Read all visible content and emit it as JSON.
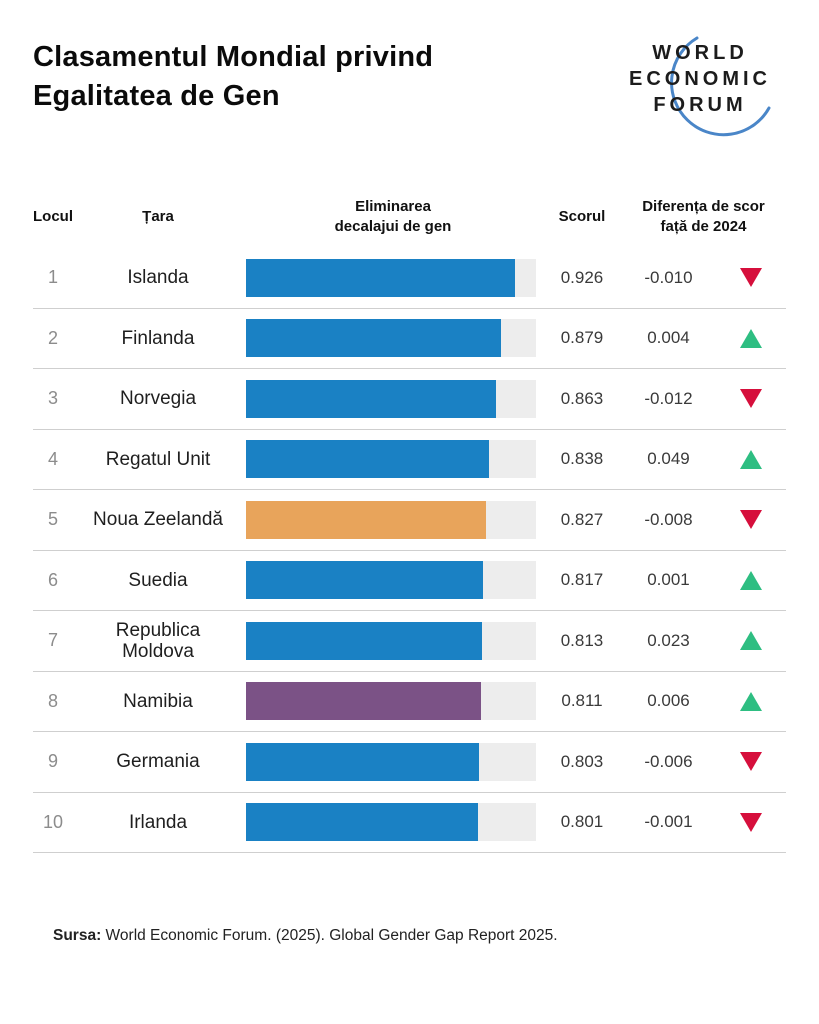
{
  "title": "Clasamentul Mondial privind\nEgalitatea de Gen",
  "logo": {
    "line1": "WORLD",
    "line2": "ECONOMIC",
    "line3": "FORUM"
  },
  "table": {
    "headers": {
      "rank": "Locul",
      "country": "Țara",
      "bar": "Eliminarea\ndecalajui de gen",
      "score": "Scorul",
      "diff": "Diferența de scor\nfață de 2024"
    },
    "rows": [
      {
        "rank": "1",
        "country": "Islanda",
        "score": "0.926",
        "diff": "-0.010",
        "direction": "down",
        "value": 0.926,
        "bar_color": "#1a81c4"
      },
      {
        "rank": "2",
        "country": "Finlanda",
        "score": "0.879",
        "diff": "0.004",
        "direction": "up",
        "value": 0.879,
        "bar_color": "#1a81c4"
      },
      {
        "rank": "3",
        "country": "Norvegia",
        "score": "0.863",
        "diff": "-0.012",
        "direction": "down",
        "value": 0.863,
        "bar_color": "#1a81c4"
      },
      {
        "rank": "4",
        "country": "Regatul Unit",
        "score": "0.838",
        "diff": "0.049",
        "direction": "up",
        "value": 0.838,
        "bar_color": "#1a81c4"
      },
      {
        "rank": "5",
        "country": "Noua Zeelandă",
        "score": "0.827",
        "diff": "-0.008",
        "direction": "down",
        "value": 0.827,
        "bar_color": "#e8a45b"
      },
      {
        "rank": "6",
        "country": "Suedia",
        "score": "0.817",
        "diff": "0.001",
        "direction": "up",
        "value": 0.817,
        "bar_color": "#1a81c4"
      },
      {
        "rank": "7",
        "country": "Republica\nMoldova",
        "score": "0.813",
        "diff": "0.023",
        "direction": "up",
        "value": 0.813,
        "bar_color": "#1a81c4"
      },
      {
        "rank": "8",
        "country": "Namibia",
        "score": "0.811",
        "diff": "0.006",
        "direction": "up",
        "value": 0.811,
        "bar_color": "#7b5286"
      },
      {
        "rank": "9",
        "country": "Germania",
        "score": "0.803",
        "diff": "-0.006",
        "direction": "down",
        "value": 0.803,
        "bar_color": "#1a81c4"
      },
      {
        "rank": "10",
        "country": "Irlanda",
        "score": "0.801",
        "diff": "-0.001",
        "direction": "down",
        "value": 0.801,
        "bar_color": "#1a81c4"
      }
    ]
  },
  "footer": {
    "label": "Sursa:",
    "text": " World Economic Forum. (2025). Global Gender Gap Report 2025."
  },
  "colors": {
    "bar_blue": "#1a81c4",
    "bar_orange": "#e8a45b",
    "bar_purple": "#7b5286",
    "bar_track": "#ededed",
    "triangle_up_green": "#2ebe82",
    "triangle_down_red": "#d60f3c",
    "divider": "#cfcfcf",
    "logo_arc_blue": "#4a86c8"
  },
  "chart_data": {
    "type": "bar",
    "orientation": "horizontal",
    "title": "Clasamentul Mondial privind Egalitatea de Gen",
    "categories": [
      "Islanda",
      "Finlanda",
      "Norvegia",
      "Regatul Unit",
      "Noua Zeelandă",
      "Suedia",
      "Republica Moldova",
      "Namibia",
      "Germania",
      "Irlanda"
    ],
    "ranks": [
      1,
      2,
      3,
      4,
      5,
      6,
      7,
      8,
      9,
      10
    ],
    "series": [
      {
        "name": "Scorul",
        "values": [
          0.926,
          0.879,
          0.863,
          0.838,
          0.827,
          0.817,
          0.813,
          0.811,
          0.803,
          0.801
        ]
      },
      {
        "name": "Diferența de scor față de 2024",
        "values": [
          -0.01,
          0.004,
          -0.012,
          0.049,
          -0.008,
          0.001,
          0.023,
          0.006,
          -0.006,
          -0.001
        ]
      }
    ],
    "bar_colors": [
      "#1a81c4",
      "#1a81c4",
      "#1a81c4",
      "#1a81c4",
      "#e8a45b",
      "#1a81c4",
      "#1a81c4",
      "#7b5286",
      "#1a81c4",
      "#1a81c4"
    ],
    "xlim": [
      0,
      1
    ],
    "grid": false,
    "legend": false,
    "source": "World Economic Forum. (2025). Global Gender Gap Report 2025."
  }
}
